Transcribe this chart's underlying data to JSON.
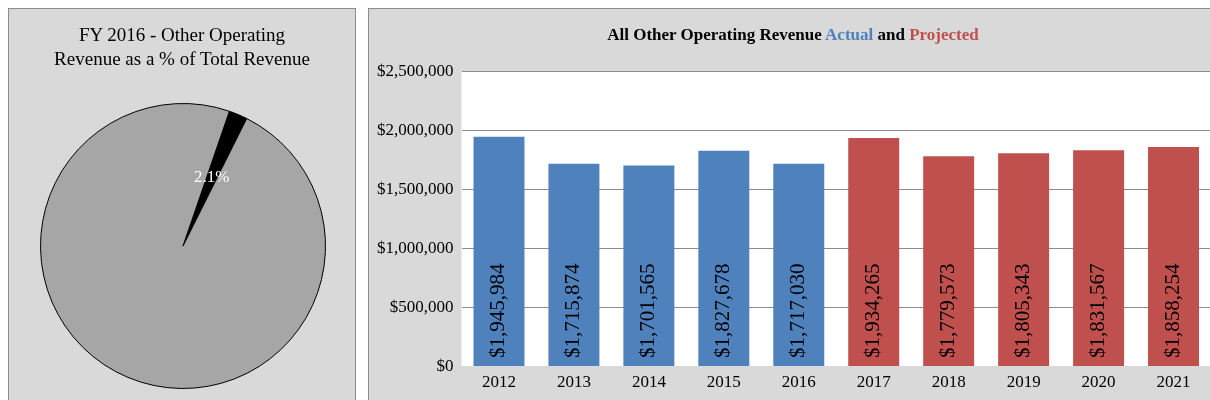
{
  "chart_data": [
    {
      "type": "pie",
      "title": "FY 2016 - Other Operating Revenue as a % of Total Revenue",
      "categories": [
        null,
        null
      ],
      "values": [
        2.1,
        97.9
      ],
      "colors": [
        "#000000",
        "#a6a6a6"
      ],
      "value_labels": [
        "2.1%",
        null
      ]
    },
    {
      "type": "bar",
      "title": "All Other Operating Revenue",
      "annotations": [
        "and"
      ],
      "categories": [
        "2012",
        "2013",
        "2014",
        "2015",
        "2016",
        "2017",
        "2018",
        "2019",
        "2020",
        "2021"
      ],
      "series": [
        {
          "name": "Actual",
          "color": "#4f81bd",
          "values": [
            1945984,
            1715874,
            1701565,
            1827678,
            1717030,
            null,
            null,
            null,
            null,
            null
          ],
          "value_labels": [
            "$1,945,984",
            "$1,715,874",
            "$1,701,565",
            "$1,827,678",
            "$1,717,030",
            null,
            null,
            null,
            null,
            null
          ]
        },
        {
          "name": "Projected",
          "color": "#c0504d",
          "values": [
            null,
            null,
            null,
            null,
            null,
            1934265,
            1779573,
            1805343,
            1831567,
            1858254
          ],
          "value_labels": [
            null,
            null,
            null,
            null,
            null,
            "$1,934,265",
            "$1,779,573",
            "$1,805,343",
            "$1,831,567",
            "$1,858,254"
          ]
        }
      ],
      "ylim": [
        0,
        2500000
      ],
      "yticks": [
        {
          "value": 0,
          "label": "$0"
        },
        {
          "value": 500000,
          "label": "$500,000"
        },
        {
          "value": 1000000,
          "label": "$1,000,000"
        },
        {
          "value": 1500000,
          "label": "$1,500,000"
        },
        {
          "value": 2000000,
          "label": "$2,000,000"
        },
        {
          "value": 2500000,
          "label": "$2,500,000"
        }
      ],
      "grid": "y"
    }
  ]
}
